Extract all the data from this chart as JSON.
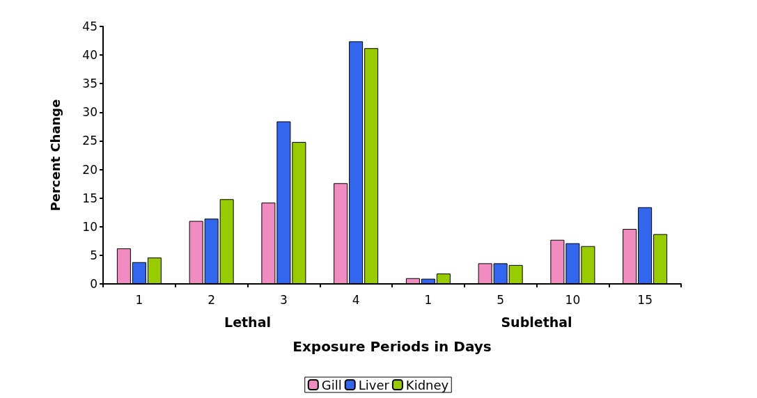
{
  "chart_data": {
    "type": "bar",
    "xlabel": "Exposure Periods in Days",
    "ylabel": "Percent Change",
    "categories": [
      "1",
      "2",
      "3",
      "4",
      "1",
      "5",
      "10",
      "15"
    ],
    "series": [
      {
        "name": "Gill",
        "color": "#f08cc0",
        "values": [
          6.2,
          11,
          14.2,
          17.6,
          1,
          3.6,
          7.7,
          9.6
        ]
      },
      {
        "name": "Liver",
        "color": "#3366ee",
        "values": [
          3.8,
          11.4,
          28.4,
          42.4,
          0.9,
          3.6,
          7.1,
          13.4
        ]
      },
      {
        "name": "Kidney",
        "color": "#99cc00",
        "values": [
          4.6,
          14.8,
          24.8,
          41.2,
          1.8,
          3.3,
          6.6,
          8.7
        ]
      }
    ],
    "ylim": [
      0,
      45
    ],
    "yticks": [
      0,
      5,
      10,
      15,
      20,
      25,
      30,
      35,
      40,
      45
    ],
    "annotations": [
      "Lethal",
      "Sublethal"
    ],
    "grid": false,
    "legend": "bottom"
  }
}
